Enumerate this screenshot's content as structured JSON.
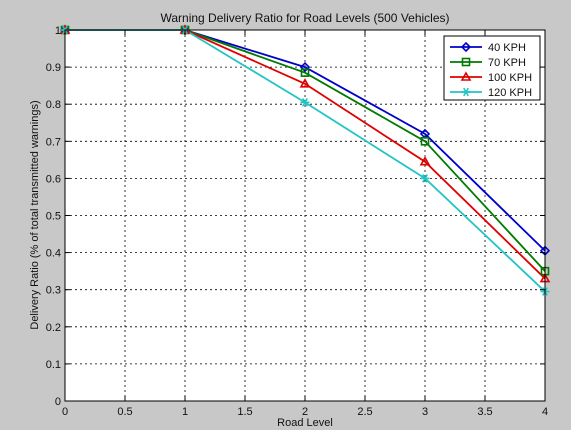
{
  "chart_data": {
    "type": "line",
    "title": "Warning Delivery Ratio for Road Levels (500 Vehicles)",
    "xlabel": "Road Level",
    "ylabel": "Delivery Ratio (% of total transmitted warnings)",
    "xlim": [
      0,
      4
    ],
    "ylim": [
      0,
      1
    ],
    "xticks": [
      0,
      0.5,
      1,
      1.5,
      2,
      2.5,
      3,
      3.5,
      4
    ],
    "xtick_labels": [
      "0",
      "0.5",
      "1",
      "1.5",
      "2",
      "2.5",
      "3",
      "3.5",
      "4"
    ],
    "yticks": [
      0,
      0.1,
      0.2,
      0.3,
      0.4,
      0.5,
      0.6,
      0.7,
      0.8,
      0.9,
      1
    ],
    "ytick_labels": [
      "0",
      "0.1",
      "0.2",
      "0.3",
      "0.4",
      "0.5",
      "0.6",
      "0.7",
      "0.8",
      "0.9",
      "1"
    ],
    "grid": true,
    "legend_position": "top-right",
    "x": [
      0,
      1,
      2,
      3,
      4
    ],
    "series": [
      {
        "name": "40 KPH",
        "values": [
          1,
          1,
          0.9,
          0.72,
          0.405
        ],
        "color": "#0000cc",
        "marker": "diamond"
      },
      {
        "name": "70 KPH",
        "values": [
          1,
          1,
          0.885,
          0.7,
          0.35
        ],
        "color": "#007a00",
        "marker": "square"
      },
      {
        "name": "100 KPH",
        "values": [
          1,
          1,
          0.855,
          0.645,
          0.33
        ],
        "color": "#e00000",
        "marker": "triangle"
      },
      {
        "name": "120 KPH",
        "values": [
          1,
          1,
          0.805,
          0.6,
          0.295
        ],
        "color": "#22c4c4",
        "marker": "star"
      }
    ]
  }
}
